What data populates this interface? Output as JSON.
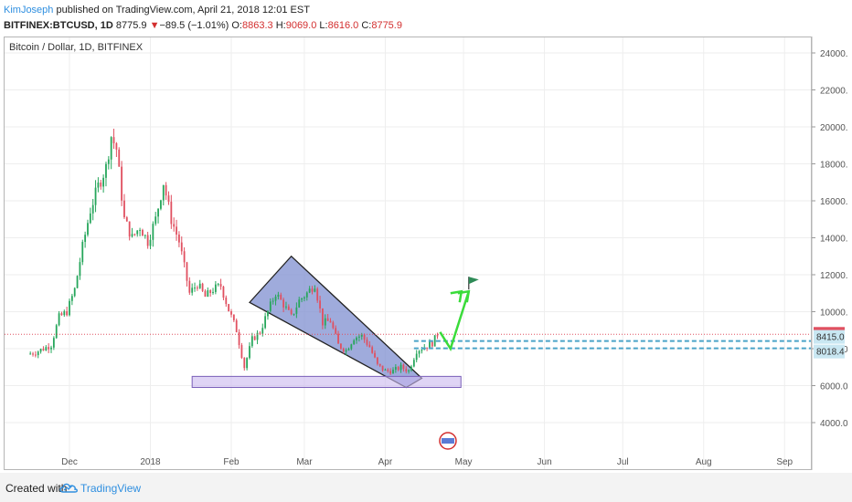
{
  "header": {
    "author": "KimJoseph",
    "published": "published on TradingView.com, April 21, 2018 12:01 EST",
    "symbol": "BITFINEX:BTCUSD, 1D",
    "last": "8775.9",
    "arrow": "▼",
    "change": "−89.5 (−1.01%)",
    "o_label": "O:",
    "o_value": "8863.3",
    "h_label": "H:",
    "h_value": "9069.0",
    "l_label": "L:",
    "l_value": "8616.0",
    "c_label": "C:",
    "c_value": "8775.9"
  },
  "chart": {
    "title": "Bitcoin / Dollar, 1D, BITFINEX",
    "price_labels": {
      "last": "8775.9",
      "level1": "8415.0",
      "level2": "8018.4"
    }
  },
  "chart_data": {
    "type": "candlestick",
    "title": "Bitcoin / Dollar, 1D, BITFINEX",
    "ylim": [
      2000,
      25000
    ],
    "yticks": [
      4000,
      6000,
      8000,
      10000,
      12000,
      14000,
      16000,
      18000,
      20000,
      22000,
      24000
    ],
    "ytick_labels": [
      "4000.0",
      "6000.0",
      "8000.0",
      "10000.0",
      "12000.0",
      "14000.0",
      "16000.0",
      "18000.0",
      "20000.0",
      "22000.0",
      "24000.0"
    ],
    "xtick_labels": [
      "Dec",
      "2018",
      "Feb",
      "Mar",
      "Apr",
      "May",
      "Jun",
      "Jul",
      "Aug",
      "Sep"
    ],
    "grid": true,
    "colors": {
      "up": "#26a65b",
      "down": "#e05060",
      "wedge": "#7f8fd0",
      "support": "#c9b8ee",
      "arrow": "#3adb3a",
      "level": "#4aa3c8",
      "last": "#e05060"
    },
    "last_price": 8775.9,
    "levels": [
      8415.0,
      8018.4
    ],
    "close_series": [
      {
        "date": "2017-11-15",
        "close": 7700
      },
      {
        "date": "2017-11-18",
        "close": 7800
      },
      {
        "date": "2017-11-21",
        "close": 8000
      },
      {
        "date": "2017-11-24",
        "close": 8200
      },
      {
        "date": "2017-11-27",
        "close": 9700
      },
      {
        "date": "2017-11-30",
        "close": 10000
      },
      {
        "date": "2017-12-03",
        "close": 11200
      },
      {
        "date": "2017-12-06",
        "close": 13500
      },
      {
        "date": "2017-12-09",
        "close": 15500
      },
      {
        "date": "2017-12-12",
        "close": 16800
      },
      {
        "date": "2017-12-15",
        "close": 17800
      },
      {
        "date": "2017-12-17",
        "close": 19500
      },
      {
        "date": "2017-12-19",
        "close": 18800
      },
      {
        "date": "2017-12-22",
        "close": 15000
      },
      {
        "date": "2017-12-25",
        "close": 14000
      },
      {
        "date": "2017-12-28",
        "close": 14600
      },
      {
        "date": "2017-12-31",
        "close": 13800
      },
      {
        "date": "2018-01-03",
        "close": 15000
      },
      {
        "date": "2018-01-06",
        "close": 17000
      },
      {
        "date": "2018-01-09",
        "close": 15000
      },
      {
        "date": "2018-01-12",
        "close": 13800
      },
      {
        "date": "2018-01-16",
        "close": 11000
      },
      {
        "date": "2018-01-19",
        "close": 11500
      },
      {
        "date": "2018-01-22",
        "close": 10800
      },
      {
        "date": "2018-01-25",
        "close": 11200
      },
      {
        "date": "2018-01-28",
        "close": 11400
      },
      {
        "date": "2018-01-31",
        "close": 10100
      },
      {
        "date": "2018-02-03",
        "close": 9000
      },
      {
        "date": "2018-02-06",
        "close": 7000
      },
      {
        "date": "2018-02-09",
        "close": 8500
      },
      {
        "date": "2018-02-12",
        "close": 8900
      },
      {
        "date": "2018-02-15",
        "close": 10000
      },
      {
        "date": "2018-02-18",
        "close": 11000
      },
      {
        "date": "2018-02-21",
        "close": 10400
      },
      {
        "date": "2018-02-24",
        "close": 9700
      },
      {
        "date": "2018-02-27",
        "close": 10600
      },
      {
        "date": "2018-03-02",
        "close": 11000
      },
      {
        "date": "2018-03-05",
        "close": 11500
      },
      {
        "date": "2018-03-08",
        "close": 9400
      },
      {
        "date": "2018-03-11",
        "close": 9500
      },
      {
        "date": "2018-03-14",
        "close": 8200
      },
      {
        "date": "2018-03-17",
        "close": 7900
      },
      {
        "date": "2018-03-20",
        "close": 8600
      },
      {
        "date": "2018-03-23",
        "close": 8700
      },
      {
        "date": "2018-03-26",
        "close": 8100
      },
      {
        "date": "2018-03-29",
        "close": 7100
      },
      {
        "date": "2018-04-01",
        "close": 6800
      },
      {
        "date": "2018-04-04",
        "close": 6800
      },
      {
        "date": "2018-04-07",
        "close": 7000
      },
      {
        "date": "2018-04-10",
        "close": 6800
      },
      {
        "date": "2018-04-13",
        "close": 7900
      },
      {
        "date": "2018-04-16",
        "close": 8100
      },
      {
        "date": "2018-04-19",
        "close": 8300
      },
      {
        "date": "2018-04-21",
        "close": 8775.9
      }
    ]
  },
  "footer": {
    "created_with": "Created with",
    "brand": "TradingView"
  }
}
